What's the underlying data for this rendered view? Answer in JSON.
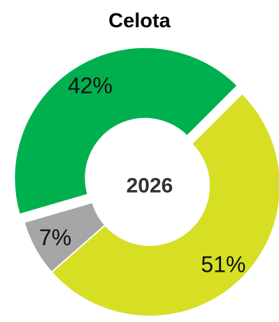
{
  "chart_data": {
    "type": "pie",
    "title": "Celota",
    "center_label": "2026",
    "slices": [
      {
        "label": "51%",
        "value": 51,
        "color": "#d6df24"
      },
      {
        "label": "7%",
        "value": 7,
        "color": "#a6a6a6"
      },
      {
        "label": "42%",
        "value": 42,
        "color": "#00b04f"
      }
    ],
    "style": "donut",
    "exploded_slice": "42%"
  }
}
